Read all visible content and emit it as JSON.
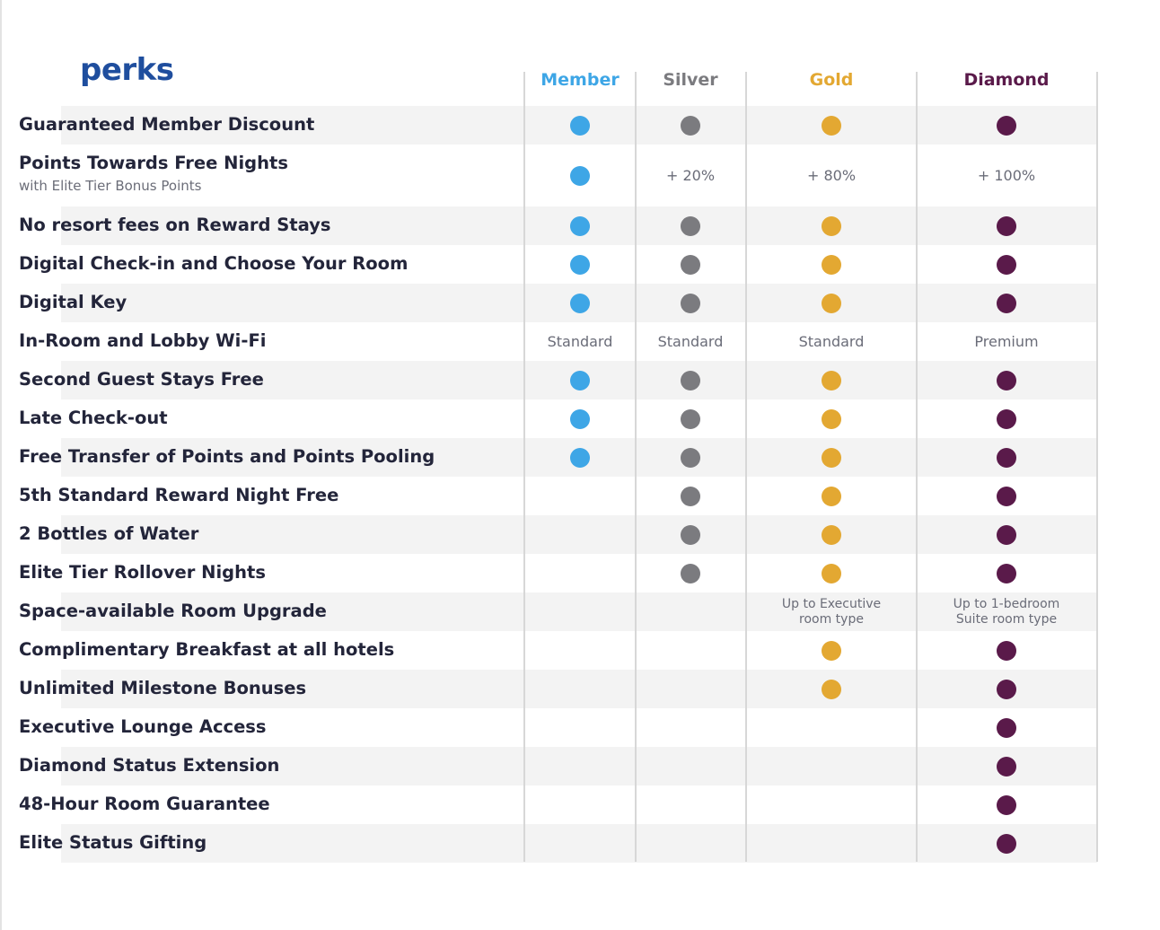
{
  "title": "perks",
  "tiers": [
    {
      "key": "member",
      "label": "Member",
      "color": "#3ea6e6"
    },
    {
      "key": "silver",
      "label": "Silver",
      "color": "#7b7b7f"
    },
    {
      "key": "gold",
      "label": "Gold",
      "color": "#e3a832"
    },
    {
      "key": "diamond",
      "label": "Diamond",
      "color": "#5a1a4a"
    }
  ],
  "perks": [
    {
      "label": "Guaranteed Member Discount",
      "cells": [
        "dot",
        "dot",
        "dot",
        "dot"
      ]
    },
    {
      "label": "Points Towards Free Nights",
      "sublabel": "with Elite Tier Bonus Points",
      "cells": [
        "dot",
        "+ 20%",
        "+ 80%",
        "+ 100%"
      ]
    },
    {
      "label": "No resort fees on Reward Stays",
      "cells": [
        "dot",
        "dot",
        "dot",
        "dot"
      ]
    },
    {
      "label": "Digital Check-in and Choose Your Room",
      "cells": [
        "dot",
        "dot",
        "dot",
        "dot"
      ]
    },
    {
      "label": "Digital Key",
      "cells": [
        "dot",
        "dot",
        "dot",
        "dot"
      ]
    },
    {
      "label": "In-Room and Lobby Wi-Fi",
      "cells": [
        "Standard",
        "Standard",
        "Standard",
        "Premium"
      ]
    },
    {
      "label": "Second Guest Stays Free",
      "cells": [
        "dot",
        "dot",
        "dot",
        "dot"
      ]
    },
    {
      "label": "Late Check-out",
      "cells": [
        "dot",
        "dot",
        "dot",
        "dot"
      ]
    },
    {
      "label": "Free Transfer of Points and Points Pooling",
      "cells": [
        "dot",
        "dot",
        "dot",
        "dot"
      ]
    },
    {
      "label": "5th Standard Reward Night Free",
      "cells": [
        "",
        "dot",
        "dot",
        "dot"
      ]
    },
    {
      "label": "2 Bottles of Water",
      "cells": [
        "",
        "dot",
        "dot",
        "dot"
      ]
    },
    {
      "label": "Elite Tier Rollover Nights",
      "cells": [
        "",
        "dot",
        "dot",
        "dot"
      ]
    },
    {
      "label": "Space-available Room Upgrade",
      "cells": [
        "",
        "",
        "Up to Executive room type",
        "Up to 1-bedroom Suite room type"
      ]
    },
    {
      "label": "Complimentary Breakfast at all hotels",
      "cells": [
        "",
        "",
        "dot",
        "dot"
      ]
    },
    {
      "label": "Unlimited Milestone Bonuses",
      "cells": [
        "",
        "",
        "dot",
        "dot"
      ]
    },
    {
      "label": "Executive Lounge Access",
      "cells": [
        "",
        "",
        "",
        "dot"
      ]
    },
    {
      "label": "Diamond Status Extension",
      "cells": [
        "",
        "",
        "",
        "dot"
      ]
    },
    {
      "label": "48-Hour Room Guarantee",
      "cells": [
        "",
        "",
        "",
        "dot"
      ]
    },
    {
      "label": "Elite Status Gifting",
      "cells": [
        "",
        "",
        "",
        "dot"
      ]
    }
  ]
}
